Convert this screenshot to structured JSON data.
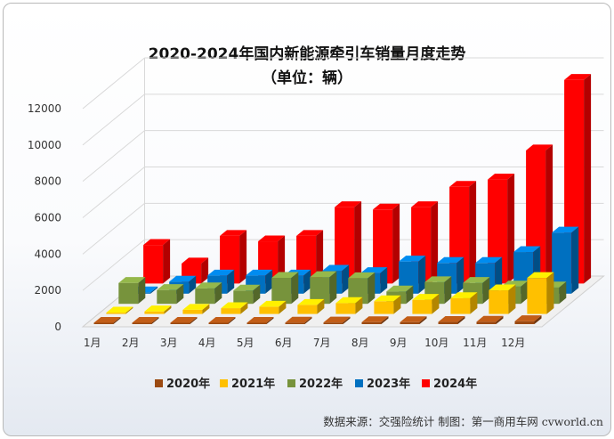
{
  "chart_data": {
    "type": "bar",
    "title": "2020-2024年国内新能源牵引车销量月度走势",
    "subtitle": "（单位：辆）",
    "categories": [
      "1月",
      "2月",
      "3月",
      "4月",
      "5月",
      "6月",
      "7月",
      "8月",
      "9月",
      "10月",
      "11月",
      "12月"
    ],
    "yticks": [
      "0",
      "2000",
      "4000",
      "6000",
      "8000",
      "10000",
      "12000"
    ],
    "ylim": [
      0,
      12000
    ],
    "series": [
      {
        "name": "2020年",
        "color": "#9b4a12",
        "values": [
          40,
          30,
          50,
          60,
          60,
          80,
          90,
          110,
          110,
          120,
          130,
          160
        ]
      },
      {
        "name": "2021年",
        "color": "#ffc000",
        "values": [
          60,
          140,
          230,
          320,
          400,
          500,
          600,
          700,
          780,
          870,
          1300,
          1980
        ]
      },
      {
        "name": "2022年",
        "color": "#77933c",
        "values": [
          1150,
          760,
          850,
          730,
          1430,
          1470,
          1410,
          680,
          1190,
          1150,
          950,
          900
        ]
      },
      {
        "name": "2023年",
        "color": "#0070c0",
        "values": [
          50,
          660,
          1000,
          1000,
          1000,
          1260,
          1130,
          1770,
          1690,
          1690,
          2290,
          3360
        ]
      },
      {
        "name": "2024年",
        "color": "#ff0000",
        "values": [
          2120,
          1100,
          2620,
          2320,
          2620,
          4200,
          4070,
          4200,
          5320,
          5720,
          7320,
          11200
        ]
      }
    ],
    "legend_position": "bottom",
    "grid": true
  },
  "source": "数据来源：交强险统计 制图：第一商用车网 cvworld.cn"
}
